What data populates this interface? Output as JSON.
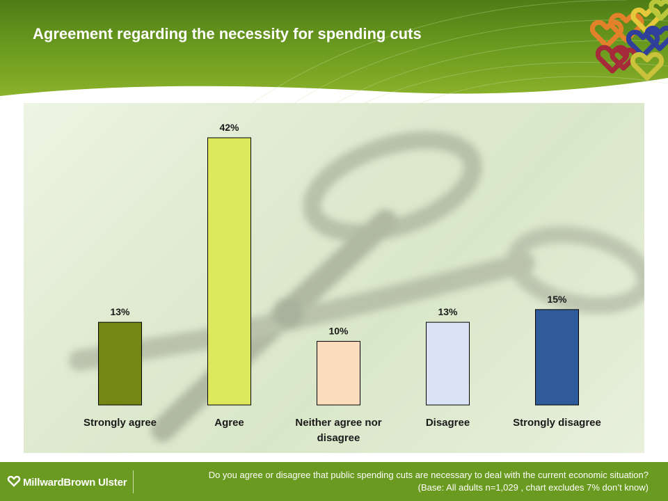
{
  "title": "Agreement regarding the necessity for spending cuts",
  "footer": {
    "brand": "MillwardBrown Ulster",
    "question": "Do you agree or disagree that public spending cuts are necessary to deal with the current economic situation?",
    "base": "(Base: All adults n=1,029 , chart excludes 7% don’t know)"
  },
  "chart_data": {
    "type": "bar",
    "categories": [
      "Strongly agree",
      "Agree",
      "Neither agree nor disagree",
      "Disagree",
      "Strongly disagree"
    ],
    "category_lines": [
      [
        "Strongly agree"
      ],
      [
        "Agree"
      ],
      [
        "Neither agree nor",
        "disagree"
      ],
      [
        "Disagree"
      ],
      [
        "Strongly disagree"
      ]
    ],
    "values": [
      13,
      42,
      10,
      13,
      15
    ],
    "data_labels": [
      "13%",
      "42%",
      "10%",
      "13%",
      "15%"
    ],
    "unit": "%",
    "colors": [
      "#748614",
      "#dde85a",
      "#fbdcbd",
      "#d9e3f3",
      "#2f5b9b"
    ],
    "ylim": [
      0,
      42
    ],
    "grid": false,
    "legend": "none"
  }
}
